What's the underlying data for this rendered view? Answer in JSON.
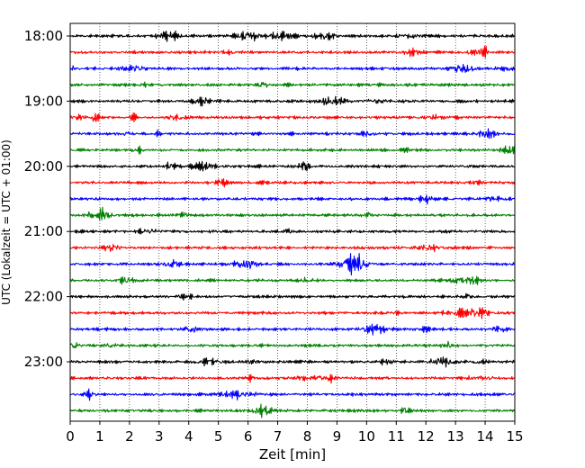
{
  "chart_data": {
    "type": "line",
    "subtype": "helicorder",
    "title": "",
    "xlabel": "Zeit  [min]",
    "ylabel": "UTC (Lokalzeit = UTC + 01:00)",
    "xlim": [
      0,
      15
    ],
    "x_ticks": [
      0,
      1,
      2,
      3,
      4,
      5,
      6,
      7,
      8,
      9,
      10,
      11,
      12,
      13,
      14,
      15
    ],
    "y_tick_labels": [
      "18:00",
      "19:00",
      "20:00",
      "21:00",
      "22:00",
      "23:00"
    ],
    "rows_per_hour": 4,
    "grid": "vertical dotted lines at each minute",
    "trace_colors": [
      "#000000",
      "#ff0000",
      "#0000ff",
      "#008000"
    ],
    "rows": [
      {
        "start": "18:00",
        "color": "#000000"
      },
      {
        "start": "18:15",
        "color": "#ff0000"
      },
      {
        "start": "18:30",
        "color": "#0000ff"
      },
      {
        "start": "18:45",
        "color": "#008000"
      },
      {
        "start": "19:00",
        "color": "#000000"
      },
      {
        "start": "19:15",
        "color": "#ff0000"
      },
      {
        "start": "19:30",
        "color": "#0000ff"
      },
      {
        "start": "19:45",
        "color": "#008000"
      },
      {
        "start": "20:00",
        "color": "#000000"
      },
      {
        "start": "20:15",
        "color": "#ff0000"
      },
      {
        "start": "20:30",
        "color": "#0000ff"
      },
      {
        "start": "20:45",
        "color": "#008000"
      },
      {
        "start": "21:00",
        "color": "#000000"
      },
      {
        "start": "21:15",
        "color": "#ff0000"
      },
      {
        "start": "21:30",
        "color": "#0000ff"
      },
      {
        "start": "21:45",
        "color": "#008000"
      },
      {
        "start": "22:00",
        "color": "#000000"
      },
      {
        "start": "22:15",
        "color": "#ff0000"
      },
      {
        "start": "22:30",
        "color": "#0000ff"
      },
      {
        "start": "22:45",
        "color": "#008000"
      },
      {
        "start": "23:00",
        "color": "#000000"
      },
      {
        "start": "23:15",
        "color": "#ff0000"
      },
      {
        "start": "23:30",
        "color": "#0000ff"
      },
      {
        "start": "23:45",
        "color": "#008000"
      }
    ]
  }
}
